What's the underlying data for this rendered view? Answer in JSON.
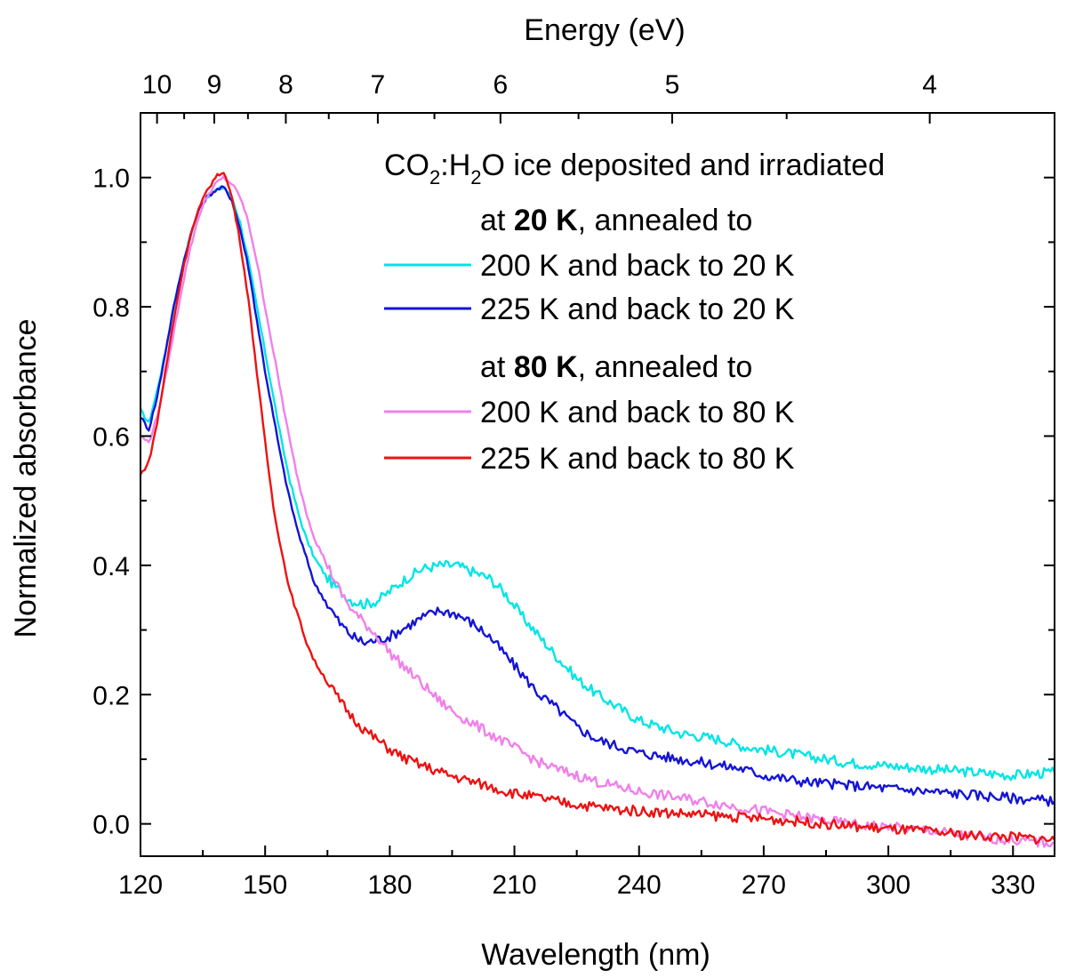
{
  "chart_data": {
    "type": "line",
    "title": "",
    "xlabel": "Wavelength (nm)",
    "ylabel": "Normalized absorbance",
    "top_axis_label": "Energy (eV)",
    "xlim": [
      120,
      340
    ],
    "ylim": [
      -0.05,
      1.1
    ],
    "x_ticks": [
      120,
      150,
      180,
      210,
      240,
      270,
      300,
      330
    ],
    "x_tick_labels": [
      "120",
      "150",
      "180",
      "210",
      "240",
      "270",
      "300",
      "330"
    ],
    "y_ticks": [
      0.0,
      0.2,
      0.4,
      0.6,
      0.8,
      1.0
    ],
    "y_tick_labels": [
      "0.0",
      "0.2",
      "0.4",
      "0.6",
      "0.8",
      "1.0"
    ],
    "top_ticks_ev": [
      10,
      9,
      8,
      7,
      6,
      5,
      4
    ],
    "top_tick_labels": [
      "10",
      "9",
      "8",
      "7",
      "6",
      "5",
      "4"
    ],
    "grid": false,
    "legend": {
      "placement": "top-right",
      "title_parts": [
        "CO",
        "2",
        ":H",
        "2",
        "O ice deposited and irradiated"
      ],
      "group1_heading_parts": [
        "at ",
        "20 K",
        ", annealed to"
      ],
      "group2_heading_parts": [
        "at ",
        "80 K",
        ", annealed to"
      ]
    },
    "series": [
      {
        "name": "200 K and back to 20 K",
        "color": "#00e5e5",
        "x": [
          120,
          122,
          124,
          126,
          128,
          130,
          132,
          134,
          136,
          138,
          140,
          142,
          144,
          146,
          148,
          150,
          152,
          154,
          156,
          158,
          160,
          162,
          165,
          168,
          171,
          174,
          177,
          180,
          184,
          188,
          192,
          196,
          200,
          204,
          208,
          212,
          216,
          220,
          225,
          230,
          235,
          240,
          245,
          250,
          255,
          260,
          265,
          270,
          280,
          290,
          300,
          310,
          320,
          330,
          340
        ],
        "y": [
          0.64,
          0.62,
          0.67,
          0.73,
          0.8,
          0.86,
          0.91,
          0.95,
          0.97,
          0.98,
          0.985,
          0.97,
          0.93,
          0.87,
          0.8,
          0.73,
          0.66,
          0.59,
          0.53,
          0.48,
          0.44,
          0.41,
          0.38,
          0.36,
          0.345,
          0.34,
          0.345,
          0.36,
          0.38,
          0.395,
          0.4,
          0.4,
          0.39,
          0.38,
          0.355,
          0.32,
          0.29,
          0.26,
          0.225,
          0.2,
          0.18,
          0.16,
          0.15,
          0.14,
          0.135,
          0.13,
          0.12,
          0.115,
          0.105,
          0.095,
          0.09,
          0.085,
          0.08,
          0.075,
          0.08
        ]
      },
      {
        "name": "225 K and back to 20 K",
        "color": "#1414d6",
        "x": [
          120,
          122,
          124,
          126,
          128,
          130,
          132,
          134,
          136,
          138,
          140,
          142,
          144,
          146,
          148,
          150,
          152,
          154,
          156,
          158,
          160,
          162,
          165,
          168,
          171,
          174,
          177,
          180,
          184,
          188,
          192,
          196,
          200,
          204,
          208,
          212,
          216,
          220,
          225,
          230,
          235,
          240,
          245,
          250,
          255,
          260,
          265,
          270,
          280,
          290,
          300,
          310,
          320,
          330,
          340
        ],
        "y": [
          0.63,
          0.61,
          0.66,
          0.73,
          0.8,
          0.86,
          0.91,
          0.95,
          0.97,
          0.98,
          0.985,
          0.965,
          0.92,
          0.86,
          0.78,
          0.7,
          0.63,
          0.56,
          0.5,
          0.45,
          0.41,
          0.37,
          0.34,
          0.31,
          0.29,
          0.28,
          0.285,
          0.29,
          0.305,
          0.32,
          0.33,
          0.325,
          0.31,
          0.29,
          0.26,
          0.23,
          0.2,
          0.18,
          0.15,
          0.13,
          0.12,
          0.11,
          0.105,
          0.1,
          0.095,
          0.09,
          0.085,
          0.075,
          0.065,
          0.06,
          0.055,
          0.05,
          0.045,
          0.04,
          0.035
        ]
      },
      {
        "name": "200 K and back to 80 K",
        "color": "#f080ea",
        "x": [
          120,
          122,
          124,
          126,
          128,
          130,
          132,
          134,
          136,
          138,
          140,
          142,
          144,
          146,
          148,
          150,
          152,
          154,
          156,
          158,
          160,
          162,
          165,
          168,
          171,
          174,
          177,
          180,
          184,
          188,
          192,
          196,
          200,
          204,
          208,
          212,
          216,
          220,
          225,
          230,
          235,
          240,
          245,
          250,
          255,
          260,
          265,
          270,
          280,
          290,
          300,
          310,
          320,
          330,
          340
        ],
        "y": [
          0.6,
          0.59,
          0.63,
          0.69,
          0.76,
          0.83,
          0.89,
          0.94,
          0.97,
          0.99,
          1.0,
          0.99,
          0.97,
          0.93,
          0.87,
          0.8,
          0.73,
          0.66,
          0.59,
          0.53,
          0.48,
          0.44,
          0.4,
          0.36,
          0.33,
          0.31,
          0.29,
          0.265,
          0.24,
          0.215,
          0.19,
          0.17,
          0.155,
          0.14,
          0.125,
          0.11,
          0.095,
          0.085,
          0.075,
          0.065,
          0.057,
          0.05,
          0.045,
          0.04,
          0.035,
          0.03,
          0.025,
          0.02,
          0.01,
          0.0,
          -0.005,
          -0.01,
          -0.02,
          -0.025,
          -0.03
        ]
      },
      {
        "name": "225 K and back to 80 K",
        "color": "#ee1111",
        "x": [
          120,
          122,
          124,
          126,
          128,
          130,
          132,
          134,
          136,
          138,
          140,
          142,
          144,
          146,
          148,
          150,
          152,
          154,
          156,
          158,
          160,
          162,
          165,
          168,
          171,
          174,
          177,
          180,
          184,
          188,
          192,
          196,
          200,
          204,
          208,
          212,
          216,
          220,
          225,
          230,
          235,
          240,
          245,
          250,
          255,
          260,
          265,
          270,
          280,
          290,
          300,
          310,
          320,
          330,
          340
        ],
        "y": [
          0.54,
          0.56,
          0.62,
          0.7,
          0.78,
          0.85,
          0.91,
          0.95,
          0.98,
          1.0,
          1.01,
          0.97,
          0.9,
          0.81,
          0.7,
          0.59,
          0.49,
          0.42,
          0.36,
          0.32,
          0.28,
          0.25,
          0.22,
          0.19,
          0.165,
          0.145,
          0.13,
          0.115,
          0.1,
          0.09,
          0.08,
          0.072,
          0.065,
          0.058,
          0.05,
          0.045,
          0.04,
          0.035,
          0.03,
          0.026,
          0.022,
          0.02,
          0.018,
          0.016,
          0.014,
          0.012,
          0.01,
          0.008,
          0.003,
          -0.003,
          -0.008,
          -0.012,
          -0.018,
          -0.02,
          -0.025
        ]
      }
    ]
  }
}
